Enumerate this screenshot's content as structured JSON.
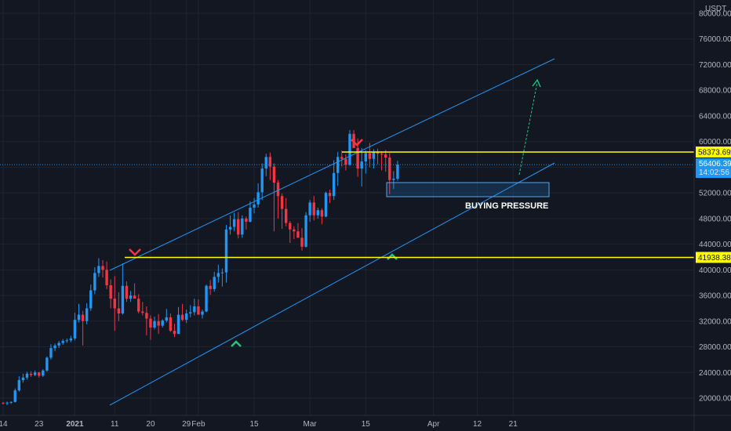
{
  "chart_data": {
    "type": "candlestick",
    "title": "",
    "ylabel": "USDT",
    "ylim": [
      18500,
      82000
    ],
    "grid": true,
    "colors": {
      "background": "#131722",
      "up": "#2196f3",
      "down": "#f23645",
      "level": "#ffff00",
      "channel": "#2196f3",
      "arrow": "#26c281"
    },
    "y_ticks": [
      20000,
      24000,
      28000,
      32000,
      36000,
      40000,
      44000,
      48000,
      52000,
      56000,
      60000,
      64000,
      68000,
      72000,
      76000,
      80000
    ],
    "y_tick_labels": [
      "20000.00",
      "24000.00",
      "28000.00",
      "32000.00",
      "36000.00",
      "40000.00",
      "44000.00",
      "48000.00",
      "52000.00",
      "56000.00",
      "60000.00",
      "64000.00",
      "68000.00",
      "72000.00",
      "76000.00",
      "80000.00"
    ],
    "x_ticks": [
      {
        "label": "14",
        "day": 0
      },
      {
        "label": "23",
        "day": 9
      },
      {
        "label": "2021",
        "day": 18
      },
      {
        "label": "11",
        "day": 28
      },
      {
        "label": "20",
        "day": 37
      },
      {
        "label": "29",
        "day": 46
      },
      {
        "label": "Feb",
        "day": 49
      },
      {
        "label": "15",
        "day": 63
      },
      {
        "label": "Mar",
        "day": 77
      },
      {
        "label": "15",
        "day": 91
      },
      {
        "label": "Apr",
        "day": 108
      },
      {
        "label": "12",
        "day": 119
      },
      {
        "label": "21",
        "day": 128
      }
    ],
    "candles": [
      [
        19250,
        19400,
        19000,
        19200
      ],
      [
        19200,
        19450,
        18900,
        19300
      ],
      [
        19300,
        19500,
        19100,
        19400
      ],
      [
        19400,
        21500,
        19300,
        21200
      ],
      [
        21200,
        23400,
        21000,
        22800
      ],
      [
        22800,
        23800,
        22400,
        23200
      ],
      [
        23200,
        24100,
        22900,
        23800
      ],
      [
        23800,
        24200,
        23300,
        23600
      ],
      [
        23600,
        24300,
        23400,
        24000
      ],
      [
        24000,
        24100,
        23200,
        23500
      ],
      [
        23500,
        24500,
        23300,
        24300
      ],
      [
        24300,
        26500,
        24100,
        26300
      ],
      [
        26300,
        28400,
        26000,
        27800
      ],
      [
        27800,
        28500,
        27300,
        28200
      ],
      [
        28200,
        28900,
        27800,
        28600
      ],
      [
        28600,
        29200,
        28300,
        28900
      ],
      [
        28900,
        29300,
        28600,
        29000
      ],
      [
        29000,
        29700,
        28700,
        29300
      ],
      [
        29300,
        33300,
        29000,
        32200
      ],
      [
        32200,
        34700,
        31800,
        33000
      ],
      [
        33000,
        33600,
        28200,
        32000
      ],
      [
        32000,
        34800,
        31500,
        34000
      ],
      [
        34000,
        37700,
        33600,
        36800
      ],
      [
        36800,
        40400,
        36200,
        39500
      ],
      [
        39500,
        41800,
        38900,
        40600
      ],
      [
        40600,
        41500,
        38800,
        40000
      ],
      [
        40000,
        41300,
        37000,
        37600
      ],
      [
        37600,
        38500,
        34000,
        35500
      ],
      [
        35500,
        39000,
        30500,
        34000
      ],
      [
        34000,
        36500,
        32000,
        33200
      ],
      [
        33200,
        41000,
        33000,
        37500
      ],
      [
        37500,
        38200,
        35000,
        35500
      ],
      [
        35500,
        36700,
        35000,
        36000
      ],
      [
        36000,
        37900,
        35700,
        35500
      ],
      [
        35500,
        36200,
        33200,
        33500
      ],
      [
        33500,
        35000,
        32900,
        33300
      ],
      [
        33300,
        34300,
        29800,
        32400
      ],
      [
        32400,
        32900,
        29100,
        31000
      ],
      [
        31000,
        32700,
        30700,
        32000
      ],
      [
        32000,
        33100,
        30000,
        31300
      ],
      [
        31300,
        32300,
        31000,
        32100
      ],
      [
        32100,
        33900,
        31800,
        32600
      ],
      [
        32600,
        33200,
        30300,
        30500
      ],
      [
        30500,
        31600,
        29500,
        30000
      ],
      [
        30000,
        34200,
        30000,
        33000
      ],
      [
        33000,
        34700,
        32000,
        32200
      ],
      [
        32200,
        33800,
        31700,
        33200
      ],
      [
        33200,
        34500,
        32600,
        33400
      ],
      [
        33400,
        35500,
        32900,
        34300
      ],
      [
        34300,
        35400,
        33500,
        33000
      ],
      [
        33000,
        33800,
        32400,
        33500
      ],
      [
        33500,
        37700,
        33400,
        37500
      ],
      [
        37500,
        38400,
        36100,
        37000
      ],
      [
        37000,
        39700,
        36600,
        38900
      ],
      [
        38900,
        40800,
        38000,
        39500
      ],
      [
        39500,
        40200,
        37400,
        39600
      ],
      [
        39600,
        47000,
        38000,
        46300
      ],
      [
        46300,
        48500,
        45500,
        46700
      ],
      [
        46700,
        48900,
        46000,
        47900
      ],
      [
        47900,
        49000,
        44900,
        45500
      ],
      [
        45500,
        48500,
        45000,
        48000
      ],
      [
        48000,
        48300,
        46300,
        47500
      ],
      [
        47500,
        50700,
        47400,
        49700
      ],
      [
        49700,
        51200,
        48800,
        50200
      ],
      [
        50200,
        53500,
        49700,
        52100
      ],
      [
        52100,
        56600,
        50900,
        55800
      ],
      [
        55800,
        58100,
        54600,
        57600
      ],
      [
        57600,
        58300,
        54000,
        56100
      ],
      [
        56100,
        56600,
        46000,
        53600
      ],
      [
        53600,
        54000,
        48000,
        51500
      ],
      [
        51500,
        51900,
        46400,
        49500
      ],
      [
        49500,
        51200,
        46800,
        47300
      ],
      [
        47300,
        47600,
        44200,
        46300
      ],
      [
        46300,
        46800,
        44800,
        46000
      ],
      [
        46000,
        47300,
        45000,
        45000
      ],
      [
        45000,
        46500,
        43000,
        43600
      ],
      [
        43600,
        49000,
        43500,
        48500
      ],
      [
        48500,
        50900,
        47500,
        50500
      ],
      [
        50500,
        51500,
        47700,
        48500
      ],
      [
        48500,
        49700,
        48000,
        49300
      ],
      [
        49300,
        49600,
        47100,
        48300
      ],
      [
        48300,
        52200,
        48200,
        52000
      ],
      [
        52000,
        52500,
        50400,
        51500
      ],
      [
        51500,
        57100,
        50900,
        55100
      ],
      [
        55100,
        58400,
        53100,
        57600
      ],
      [
        57600,
        58600,
        56100,
        57300
      ],
      [
        57300,
        58000,
        55500,
        56400
      ],
      [
        56400,
        61800,
        56200,
        61200
      ],
      [
        61200,
        61800,
        59000,
        59000
      ],
      [
        59000,
        60500,
        54500,
        55800
      ],
      [
        55800,
        59000,
        53000,
        56900
      ],
      [
        56900,
        58600,
        55000,
        58200
      ],
      [
        58200,
        59800,
        56000,
        57300
      ],
      [
        57300,
        58800,
        55800,
        58400
      ],
      [
        58400,
        58900,
        56500,
        58100
      ],
      [
        58100,
        58500,
        55500,
        58000
      ],
      [
        58000,
        58700,
        55300,
        57500
      ],
      [
        57500,
        58200,
        51800,
        54000
      ],
      [
        54000,
        55400,
        52600,
        54200
      ],
      [
        54200,
        57000,
        53900,
        56406
      ]
    ],
    "levels": [
      {
        "price": 58373.69,
        "label": "58373.69"
      },
      {
        "price": 41938.38,
        "label": "41938.38"
      }
    ],
    "last_price": {
      "label": "56406.39",
      "price": 56406.39,
      "countdown": "14:02:56"
    },
    "annotations": [
      {
        "text": "BUYING PRESSURE"
      }
    ]
  }
}
